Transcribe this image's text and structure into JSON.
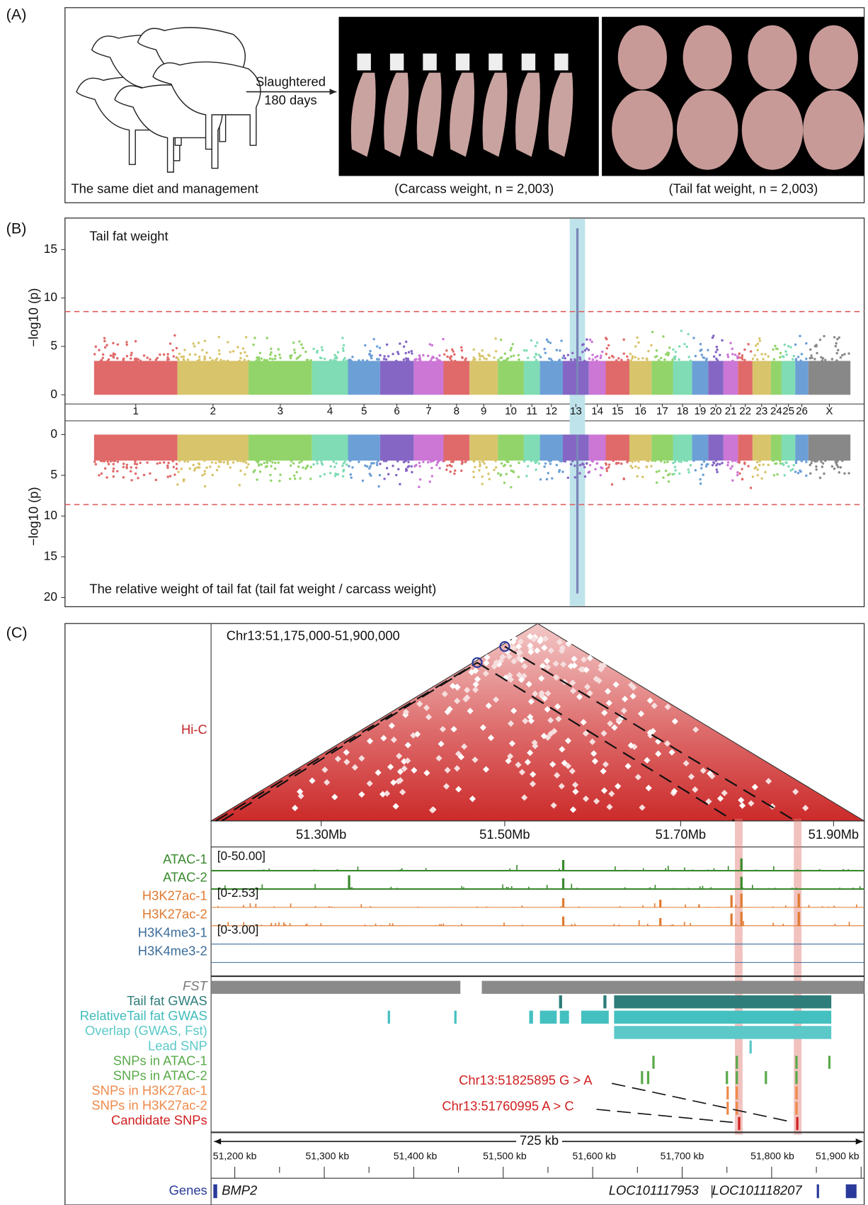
{
  "panel_a": {
    "label": "(A)",
    "caption_left": "The same diet and management",
    "arrow_text": [
      "Slaughtered",
      "180 days"
    ],
    "caption_middle": "(Carcass weight, n = 2,003)",
    "caption_right": "(Tail fat weight, n = 2,003)"
  },
  "panel_b": {
    "label": "(B)",
    "y_label": "−log10 (p)",
    "top_title": "Tail fat weight",
    "bottom_title": "The relative weight of tail fat (tail fat weight / carcass weight)",
    "top_yticks": [
      0,
      5,
      10,
      15
    ],
    "bottom_yticks": [
      0,
      5,
      10,
      15,
      20
    ],
    "chromosomes": [
      "1",
      "2",
      "3",
      "4",
      "5",
      "6",
      "7",
      "8",
      "9",
      "10",
      "11",
      "12",
      "13",
      "14",
      "15",
      "16",
      "17",
      "18",
      "19",
      "20",
      "21",
      "22",
      "23",
      "24",
      "25",
      "26",
      "X"
    ]
  },
  "panel_c": {
    "label": "(C)",
    "region": "Chr13:51,175,000-51,900,000",
    "hic_label": "Hi-C",
    "axis_ticks": [
      "51.30Mb",
      "51.50Mb",
      "51.70Mb",
      "51.90Mb"
    ],
    "signal_tracks": [
      {
        "name": "ATAC-1",
        "range": "[0-50.00]"
      },
      {
        "name": "ATAC-2"
      },
      {
        "name": "H3K27ac-1",
        "range": "[0-2.53]"
      },
      {
        "name": "H3K27ac-2"
      },
      {
        "name": "H3K4me3-1",
        "range": "[0-3.00]"
      },
      {
        "name": "H3K4me3-2"
      }
    ],
    "annotation_tracks": [
      "FST",
      "Tail fat GWAS",
      "RelativeTail fat GWAS",
      "Overlap (GWAS, Fst)",
      "Lead SNP",
      "SNPs in ATAC-1",
      "SNPs in ATAC-2",
      "SNPs in H3K27ac-1",
      "SNPs in H3K27ac-2",
      "Candidate SNPs"
    ],
    "snp_labels": [
      "Chr13:51825895 G > A",
      "Chr13:51760995 A > C"
    ],
    "scale": "725 kb",
    "kb_ticks": [
      "51,200 kb",
      "51,300 kb",
      "51,400 kb",
      "51,500 kb",
      "51,600 kb",
      "51,700 kb",
      "51,800 kb",
      "51,900 kb"
    ],
    "genes_label": "Genes",
    "genes": [
      "BMP2",
      "LOC101117953",
      "LOC101118207"
    ]
  }
}
